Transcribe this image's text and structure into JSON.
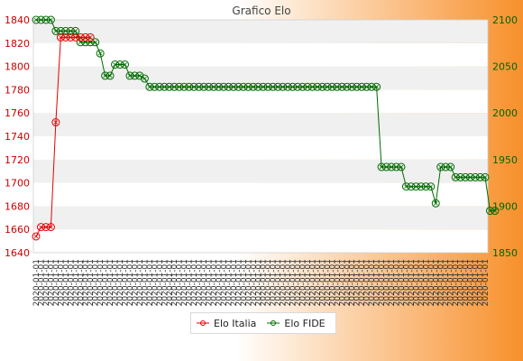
{
  "colors": {
    "background_left": "#ffffff",
    "background_right": "#f7902b",
    "plot_band_light": "#ffffff",
    "plot_band_dark": "#f0f0f0",
    "italia": "#e60000",
    "fide": "#006b00",
    "axis_left_text": "#cc0000",
    "axis_right_text": "#006600",
    "title_text": "#444444"
  },
  "chart_data": {
    "type": "line",
    "title": "Grafico Elo",
    "x_tick_label_text": "2020-01-01",
    "x_point_count": 92,
    "y_left_ticks": [
      1640,
      1660,
      1680,
      1700,
      1720,
      1740,
      1760,
      1780,
      1800,
      1820,
      1840
    ],
    "y_left_range": [
      1640,
      1840
    ],
    "y_right_ticks": [
      1850,
      1900,
      1950,
      2000,
      2050,
      2100
    ],
    "y_right_range": [
      1850,
      2100
    ],
    "grid": "horizontal bands",
    "legend_position": "bottom-center",
    "series": [
      {
        "name": "Elo Italia",
        "axis": "left",
        "values": [
          1654,
          1662,
          1662,
          1662,
          1752,
          1825,
          1825,
          1825,
          1825,
          1825,
          1825,
          1825
        ]
      },
      {
        "name": "Elo FIDE",
        "axis": "right",
        "values": [
          2100,
          2100,
          2100,
          2100,
          2088,
          2088,
          2088,
          2088,
          2088,
          2076,
          2076,
          2076,
          2076,
          2064,
          2040,
          2040,
          2052,
          2052,
          2052,
          2040,
          2040,
          2040,
          2037,
          2028,
          2028,
          2028,
          2028,
          2028,
          2028,
          2028,
          2028,
          2028,
          2028,
          2028,
          2028,
          2028,
          2028,
          2028,
          2028,
          2028,
          2028,
          2028,
          2028,
          2028,
          2028,
          2028,
          2028,
          2028,
          2028,
          2028,
          2028,
          2028,
          2028,
          2028,
          2028,
          2028,
          2028,
          2028,
          2028,
          2028,
          2028,
          2028,
          2028,
          2028,
          2028,
          2028,
          2028,
          2028,
          2028,
          2028,
          1942,
          1942,
          1942,
          1942,
          1942,
          1921,
          1921,
          1921,
          1921,
          1921,
          1921,
          1903,
          1942,
          1942,
          1942,
          1931,
          1931,
          1931,
          1931,
          1931,
          1931,
          1931,
          1895,
          1895
        ]
      }
    ]
  }
}
